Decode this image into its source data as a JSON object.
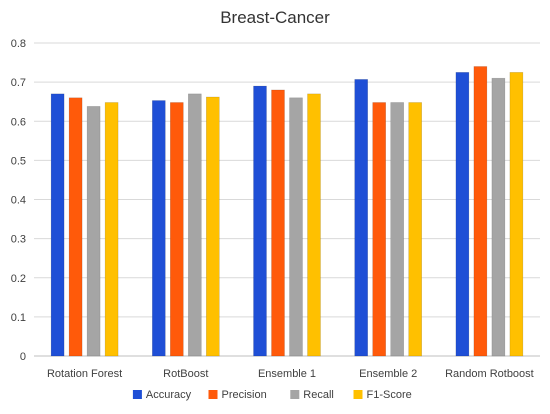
{
  "chart_data": {
    "type": "bar",
    "title": "Breast-Cancer",
    "xlabel": "",
    "ylabel": "",
    "ylim": [
      0,
      0.8
    ],
    "yticks": [
      "0",
      "0.1",
      "0.2",
      "0.3",
      "0.4",
      "0.5",
      "0.6",
      "0.7",
      "0.8"
    ],
    "grid": true,
    "legend_position": "bottom",
    "categories": [
      "Rotation Forest",
      "RotBoost",
      "Ensemble 1",
      "Ensemble 2",
      "Random Rotboost"
    ],
    "series": [
      {
        "name": "Accuracy",
        "color": "#1f4fd6",
        "values": [
          0.67,
          0.653,
          0.69,
          0.707,
          0.725
        ]
      },
      {
        "name": "Precision",
        "color": "#ff5a0a",
        "values": [
          0.66,
          0.648,
          0.68,
          0.648,
          0.74
        ]
      },
      {
        "name": "Recall",
        "color": "#a5a5a5",
        "values": [
          0.638,
          0.67,
          0.66,
          0.648,
          0.71
        ]
      },
      {
        "name": "F1-Score",
        "color": "#ffc000",
        "values": [
          0.648,
          0.662,
          0.67,
          0.648,
          0.725
        ]
      }
    ]
  }
}
